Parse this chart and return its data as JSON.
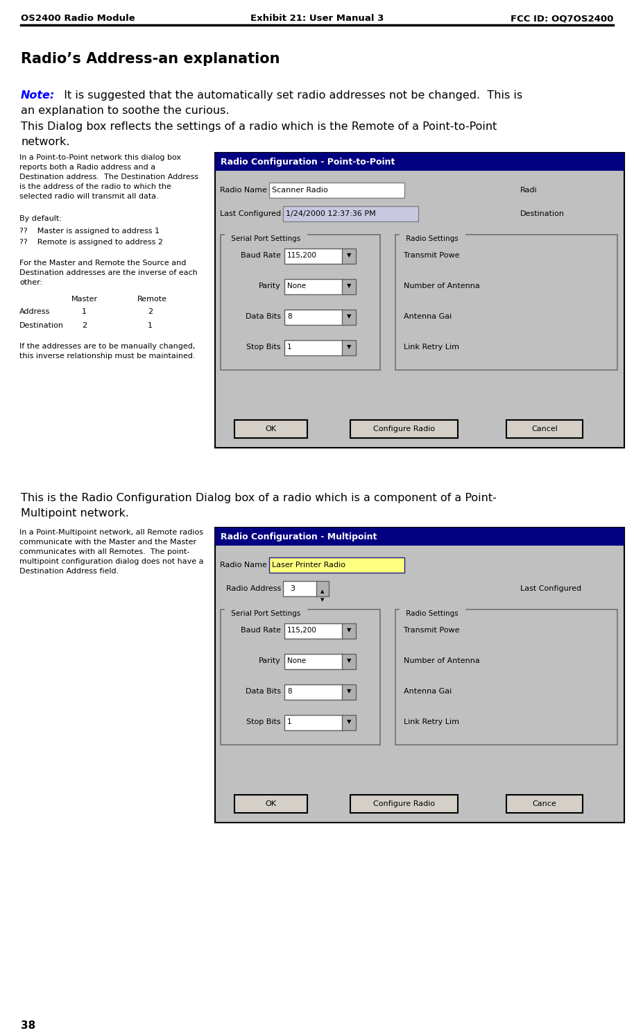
{
  "header_left": "OS2400 Radio Module",
  "header_center": "Exhibit 21: User Manual 3",
  "header_right": "FCC ID: OQ7OS2400",
  "page_number": "38",
  "title": "Radio’s Address-an explanation",
  "note_label": "Note:",
  "left_col_text1": "In a Point-to-Point network this dialog box\nreports both a Radio address and a\nDestination address.  The Destination Address\nis the address of the radio to which the\nselected radio will transmit all data.",
  "left_col_text2": "By default:",
  "left_col_bullet1": "??    Master is assigned to address 1",
  "left_col_bullet2": "??    Remote is assigned to address 2",
  "left_col_text3": "For the Master and Remote the Source and\nDestination addresses are the inverse of each\nother:",
  "left_col_text4": "If the addresses are to be manually changed,\nthis inverse relationship must be maintained.",
  "dialog1_title": "Radio Configuration - Point-to-Point",
  "dialog2_title": "Radio Configuration - Multipoint",
  "dialog1_serial_fields": [
    [
      "Baud Rate",
      "115,200"
    ],
    [
      "Parity",
      "None"
    ],
    [
      "Data Bits",
      "8"
    ],
    [
      "Stop Bits",
      "1"
    ]
  ],
  "dialog2_serial_fields": [
    [
      "Baud Rate",
      "115,200"
    ],
    [
      "Parity",
      "None"
    ],
    [
      "Data Bits",
      "8"
    ],
    [
      "Stop Bits",
      "1"
    ]
  ],
  "dialog1_radio_fields": [
    "Transmit Powe",
    "Number of Antenna",
    "Antenna Gai",
    "Link Retry Lim"
  ],
  "dialog2_radio_fields": [
    "Transmit Powe",
    "Number of Antenna",
    "Antenna Gai",
    "Link Retry Lim"
  ],
  "dialog1_buttons": [
    "OK",
    "Configure Radio",
    "Cancel"
  ],
  "dialog2_buttons": [
    "OK",
    "Configure Radio",
    "Cance"
  ],
  "left_col2_text": "In a Point-Multipoint network, all Remote radios\ncommunicate with the Master and the Master\ncommunicates with all Remotes.  The point-\nmultipoint configuration dialog does not have a\nDestination Address field.",
  "bg_color": "#ffffff",
  "dialog_bg": "#c0c0c0",
  "dialog_title_bg": "#000080",
  "dialog_title_fg": "#ffffff",
  "input_bg": "#ffffff",
  "note_color": "#0000ff",
  "title_fontsize": 15,
  "header_fontsize": 9.5,
  "body_fontsize": 11.5,
  "small_fontsize": 8.0,
  "dialog_title_fontsize": 9,
  "dialog_field_fontsize": 8.0
}
